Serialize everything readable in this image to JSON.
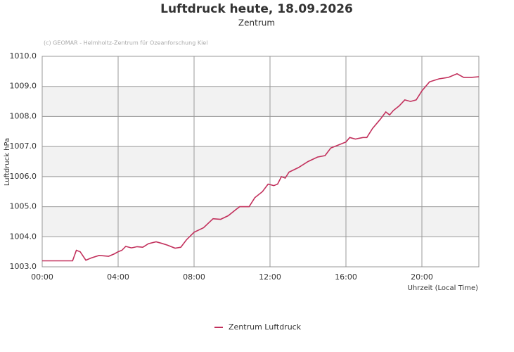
{
  "chart_data": {
    "type": "line",
    "title": "Luftdruck heute, 18.09.2026",
    "subtitle": "Zentrum",
    "annotation": "(c) GEOMAR - Helmholtz-Zentrum für Ozeanforschung Kiel",
    "x_label": "Uhrzeit (Local Time)",
    "y_label": "Luftdruck hPa",
    "x": [
      0,
      1.6,
      1.8,
      2.0,
      2.3,
      2.6,
      3.0,
      3.5,
      3.8,
      4.0,
      4.2,
      4.4,
      4.7,
      5.0,
      5.3,
      5.6,
      6.0,
      6.3,
      6.6,
      7.0,
      7.3,
      7.6,
      8.0,
      8.5,
      9.0,
      9.4,
      9.8,
      10.2,
      10.4,
      10.9,
      11.2,
      11.6,
      11.9,
      12.2,
      12.4,
      12.6,
      12.8,
      13.0,
      13.5,
      14.0,
      14.5,
      14.9,
      15.2,
      15.6,
      16.0,
      16.2,
      16.5,
      16.9,
      17.1,
      17.4,
      17.8,
      18.1,
      18.3,
      18.5,
      18.8,
      19.1,
      19.4,
      19.7,
      20.0,
      20.4,
      20.9,
      21.4,
      21.85,
      22.2,
      22.6,
      23.0
    ],
    "series": [
      {
        "name": "Zentrum Luftdruck",
        "color": "#c2305c",
        "values": [
          1003.2,
          1003.2,
          1003.55,
          1003.5,
          1003.22,
          1003.3,
          1003.38,
          1003.35,
          1003.43,
          1003.5,
          1003.55,
          1003.68,
          1003.63,
          1003.67,
          1003.65,
          1003.77,
          1003.83,
          1003.78,
          1003.72,
          1003.62,
          1003.65,
          1003.9,
          1004.15,
          1004.3,
          1004.6,
          1004.58,
          1004.7,
          1004.9,
          1005.0,
          1005.0,
          1005.3,
          1005.5,
          1005.75,
          1005.7,
          1005.75,
          1006.0,
          1005.95,
          1006.15,
          1006.3,
          1006.5,
          1006.65,
          1006.7,
          1006.95,
          1007.05,
          1007.15,
          1007.3,
          1007.25,
          1007.3,
          1007.3,
          1007.6,
          1007.9,
          1008.15,
          1008.05,
          1008.2,
          1008.35,
          1008.55,
          1008.5,
          1008.55,
          1008.85,
          1009.15,
          1009.25,
          1009.3,
          1009.42,
          1009.3,
          1009.3,
          1009.32
        ]
      }
    ],
    "xlim": [
      0,
      23
    ],
    "xticks": [
      {
        "value": 0,
        "label": "00:00"
      },
      {
        "value": 4,
        "label": "04:00"
      },
      {
        "value": 8,
        "label": "08:00"
      },
      {
        "value": 12,
        "label": "12:00"
      },
      {
        "value": 16,
        "label": "16:00"
      },
      {
        "value": 20,
        "label": "20:00"
      }
    ],
    "ylim": [
      1003,
      1010
    ],
    "yticks": [
      {
        "value": 1003,
        "label": "1003.0"
      },
      {
        "value": 1004,
        "label": "1004.0"
      },
      {
        "value": 1005,
        "label": "1005.0"
      },
      {
        "value": 1006,
        "label": "1006.0"
      },
      {
        "value": 1007,
        "label": "1007.0"
      },
      {
        "value": 1008,
        "label": "1008.0"
      },
      {
        "value": 1009,
        "label": "1009.0"
      },
      {
        "value": 1010,
        "label": "1010.0"
      }
    ],
    "grid": true
  }
}
